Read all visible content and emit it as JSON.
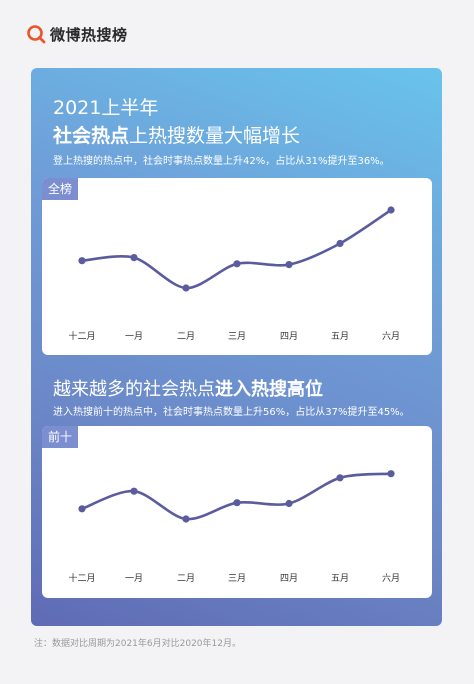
{
  "brand": {
    "name": "微博热搜榜",
    "icon": "weibo-search-logo-icon",
    "accent": "#e8562a"
  },
  "header": {
    "year_line": "2021上半年",
    "title_bold": "社会热点",
    "title_rest": "上热搜数量大幅增长",
    "subtitle": "登上热搜的热点中，社会时事热点数量上升42%，占比从31%提升至36%。"
  },
  "section2": {
    "title_normal": "越来越多的社会热点",
    "title_bold": "进入热搜高位",
    "subtitle": "进入热搜前十的热点中，社会时事热点数量上升56%，占比从37%提升至45%。"
  },
  "colors": {
    "line": "#5a5c9e",
    "tag_bg": "#7b8fd0",
    "panel_top": "#68c4ec",
    "panel_bottom": "#5f6bb5"
  },
  "chart_data": [
    {
      "type": "line",
      "tag": "全榜",
      "categories": [
        "十二月",
        "一月",
        "二月",
        "三月",
        "四月",
        "五月",
        "六月"
      ],
      "values": [
        0.35,
        0.39,
        0.0,
        0.31,
        0.3,
        0.57,
        1.0
      ],
      "ylim": [
        0,
        1
      ],
      "grid": false
    },
    {
      "type": "line",
      "tag": "前十",
      "categories": [
        "十二月",
        "一月",
        "二月",
        "三月",
        "四月",
        "五月",
        "六月"
      ],
      "values": [
        0.0,
        0.43,
        -0.25,
        0.15,
        0.13,
        0.76,
        0.86
      ],
      "ylim": [
        -0.3,
        1
      ],
      "grid": false
    }
  ],
  "note": "注：数据对比周期为2021年6月对比2020年12月。"
}
